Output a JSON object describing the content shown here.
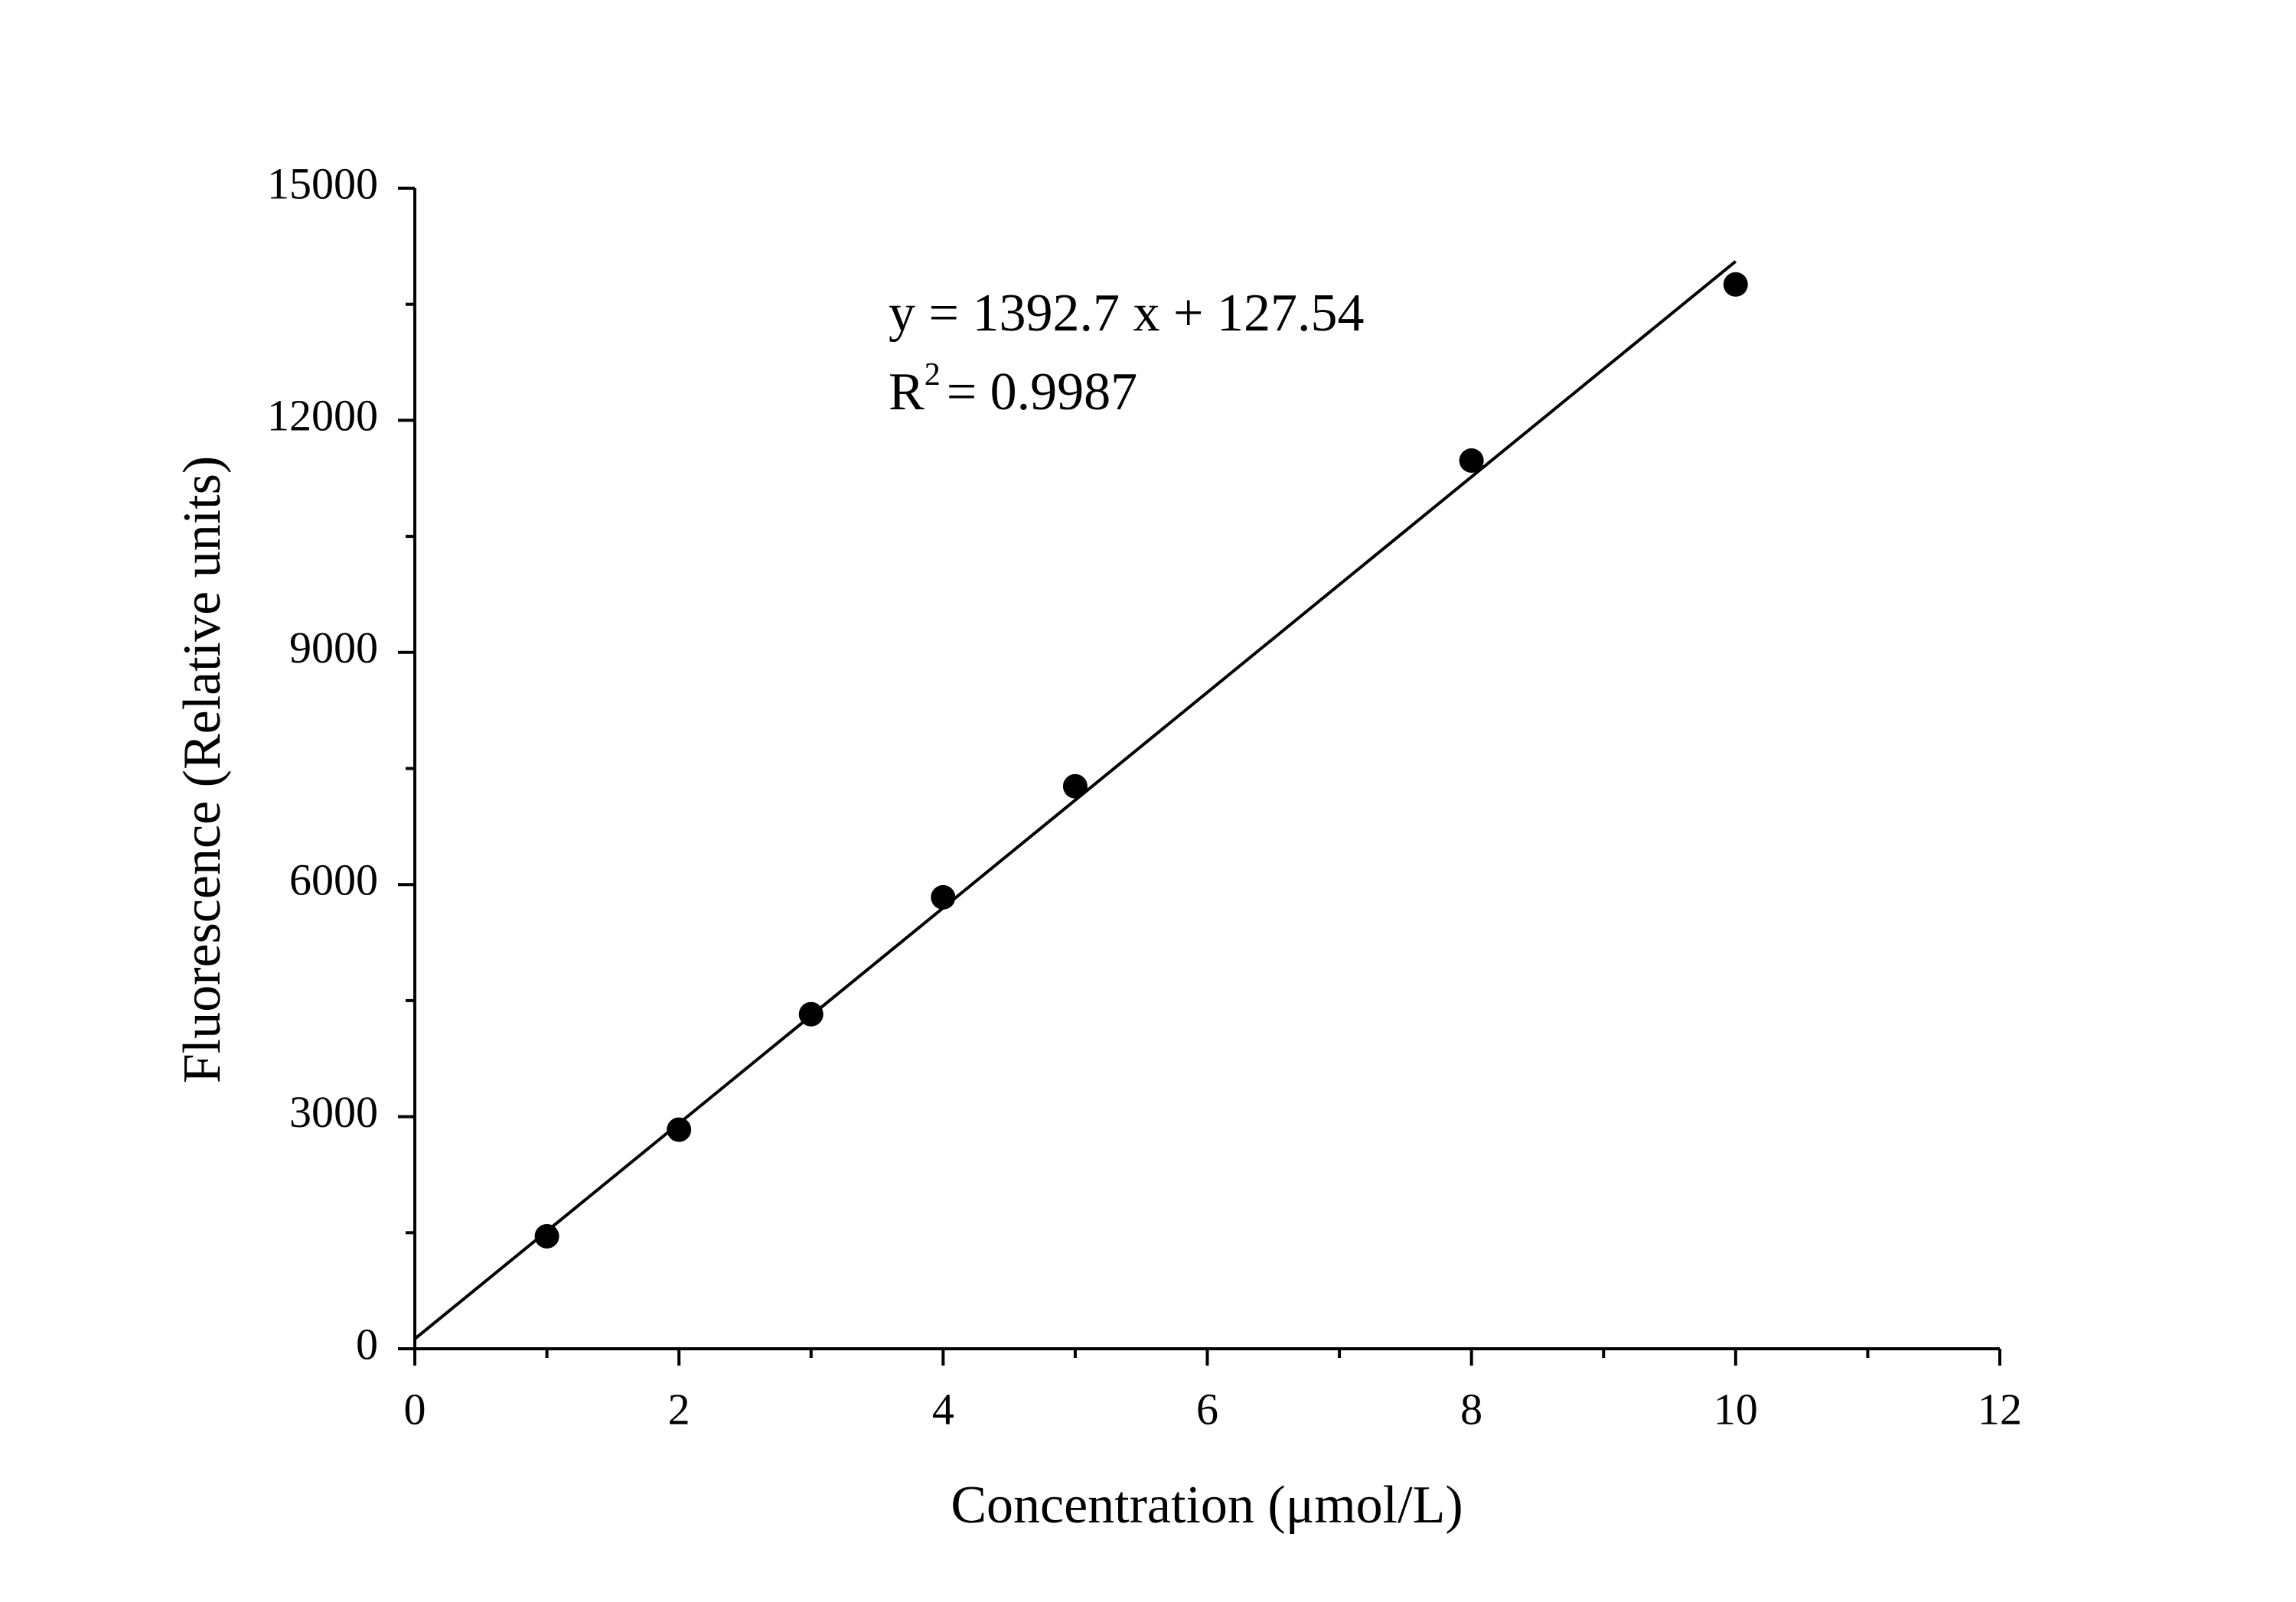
{
  "chart_data": {
    "type": "scatter",
    "x_label": "Concentration (μmol/L)",
    "y_label": "Fluorescence (Relative units)",
    "x": [
      1,
      2,
      3,
      4,
      5,
      8,
      10
    ],
    "values": [
      1454,
      2832,
      4324,
      5835,
      7270,
      11480,
      13756
    ],
    "color": "#000000",
    "fit_line": {
      "slope": 1392.7,
      "intercept": 127.54,
      "x": [
        0,
        10
      ],
      "color": "#000000"
    },
    "annotations": [
      {
        "text": "y = 1392.7 x + 127.54"
      },
      {
        "text": "R",
        "sup": "2",
        "rest": "= 0.9987"
      }
    ],
    "xlim": [
      0,
      12
    ],
    "ylim": [
      0,
      15000
    ],
    "xticks": [
      0,
      2,
      4,
      6,
      8,
      10,
      12
    ],
    "yticks": [
      0,
      3000,
      6000,
      9000,
      12000,
      15000
    ],
    "xminor": [
      1,
      3,
      5,
      7,
      9,
      11
    ],
    "yminor": [
      1500,
      4500,
      7500,
      10500,
      13500
    ],
    "grid": false
  }
}
